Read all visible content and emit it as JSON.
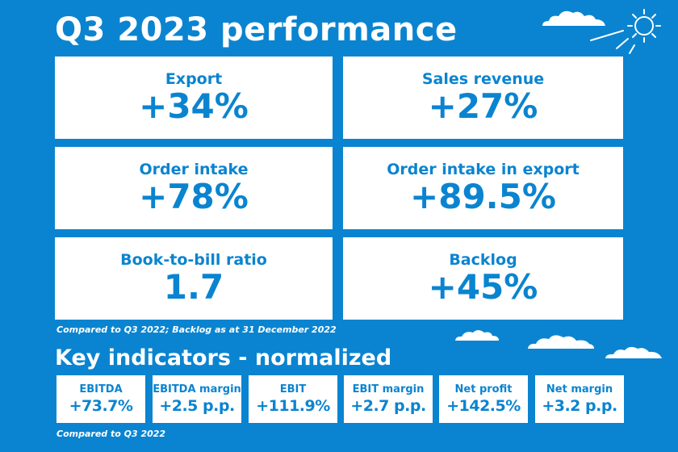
{
  "title": "Q3 2023 performance",
  "cards": [
    {
      "label": "Export",
      "value": "+34%"
    },
    {
      "label": "Sales revenue",
      "value": "+27%"
    },
    {
      "label": "Order intake",
      "value": "+78%"
    },
    {
      "label": "Order intake in export",
      "value": "+89.5%"
    },
    {
      "label": "Book-to-bill ratio",
      "value": "1.7"
    },
    {
      "label": "Backlog",
      "value": "+45%"
    }
  ],
  "note_top": "Compared to Q3 2022; Backlog as at 31 December 2022",
  "subtitle": "Key indicators - normalized",
  "indicators": [
    {
      "label": "EBITDA",
      "value": "+73.7%"
    },
    {
      "label": "EBITDA margin",
      "value": "+2.5 p.p."
    },
    {
      "label": "EBIT",
      "value": "+111.9%"
    },
    {
      "label": "EBIT margin",
      "value": "+2.7 p.p."
    },
    {
      "label": "Net profit",
      "value": "+142.5%"
    },
    {
      "label": "Net margin",
      "value": "+3.2 p.p."
    }
  ],
  "note_bottom": "Compared to Q3 2022",
  "colors": {
    "background": "#0a84d0",
    "card": "#ffffff",
    "text": "#0a84d0"
  },
  "icons": [
    "cloud-icon",
    "sun-icon"
  ]
}
